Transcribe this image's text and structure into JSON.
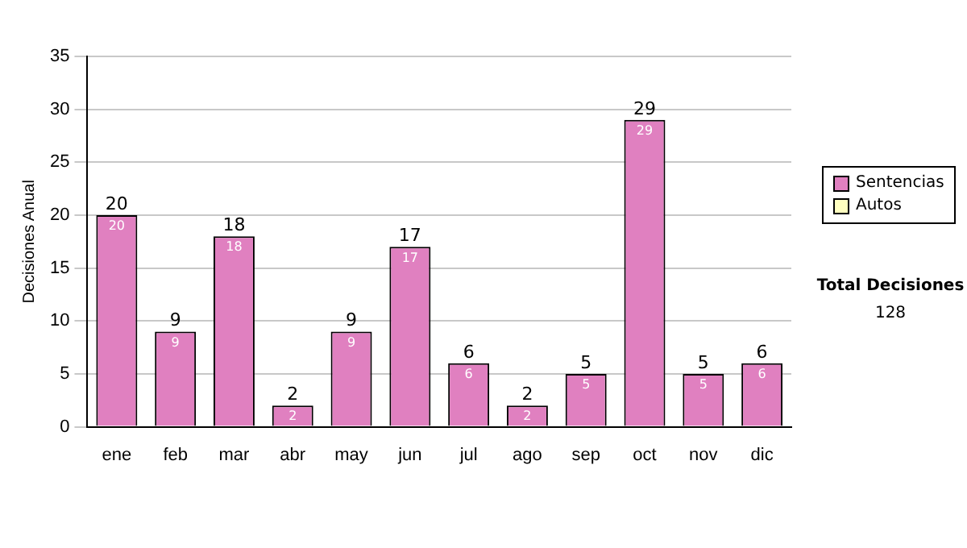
{
  "chart_data": {
    "type": "bar",
    "ylabel": "Decisiones Anual",
    "categories": [
      "ene",
      "feb",
      "mar",
      "abr",
      "may",
      "jun",
      "jul",
      "ago",
      "sep",
      "oct",
      "nov",
      "dic"
    ],
    "series": [
      {
        "name": "Sentencias",
        "color": "#e080c0",
        "values": [
          20,
          9,
          18,
          2,
          9,
          17,
          6,
          2,
          5,
          29,
          5,
          6
        ],
        "value_labels": [
          "20",
          "9",
          "18",
          "2",
          "9",
          "17",
          "6",
          "2",
          "5",
          "29",
          "5",
          "6"
        ]
      },
      {
        "name": "Autos",
        "color": "#ffffc0",
        "values": [
          0,
          0,
          0,
          0,
          0,
          0,
          0,
          0,
          0,
          0,
          0,
          0
        ]
      }
    ],
    "stacked": true,
    "totals": [
      "20",
      "9",
      "18",
      "2",
      "9",
      "17",
      "6",
      "2",
      "5",
      "29",
      "5",
      "6"
    ],
    "ylim": [
      0,
      35
    ],
    "yticks": [
      0,
      5,
      10,
      15,
      20,
      25,
      30,
      35
    ],
    "grid": "y",
    "legend": "right",
    "annotations": [
      "Total Decisiones",
      "128"
    ]
  }
}
